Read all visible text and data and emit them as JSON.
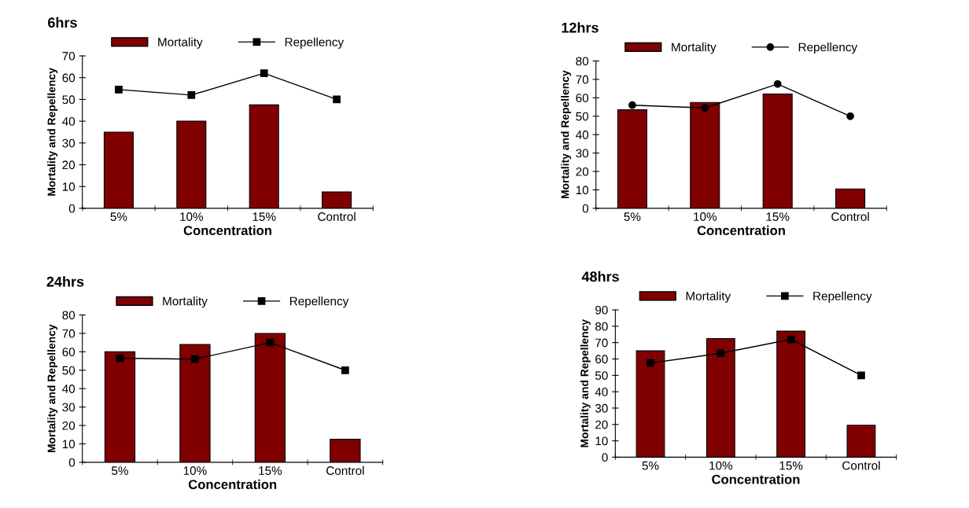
{
  "chart_data": [
    {
      "type": "bar",
      "title": "6hrs",
      "xlabel": "Concentration",
      "ylabel": "Mortality and Repellency",
      "categories": [
        "5%",
        "10%",
        "15%",
        "Control"
      ],
      "ylim": [
        0,
        70
      ],
      "yticks": [
        0,
        10,
        20,
        30,
        40,
        50,
        60,
        70
      ],
      "grid": false,
      "legend": "top",
      "series": [
        {
          "name": "Mortality",
          "color": "#800000",
          "values": [
            35,
            40,
            47.5,
            7.5
          ]
        },
        {
          "name": "Repellency",
          "type": "line",
          "color": "#000000",
          "marker": "square",
          "values": [
            54.5,
            52,
            62,
            50
          ]
        }
      ]
    },
    {
      "type": "bar",
      "title": "12hrs",
      "xlabel": "Concentration",
      "ylabel": "Mortality and Repellency",
      "categories": [
        "5%",
        "10%",
        "15%",
        "Control"
      ],
      "ylim": [
        0,
        80
      ],
      "yticks": [
        0,
        10,
        20,
        30,
        40,
        50,
        60,
        70,
        80
      ],
      "grid": false,
      "legend": "top",
      "series": [
        {
          "name": "Mortality",
          "color": "#800000",
          "values": [
            53.5,
            57.5,
            62,
            10.5
          ]
        },
        {
          "name": "Repellency",
          "type": "line",
          "color": "#000000",
          "marker": "circle",
          "values": [
            56,
            54.5,
            67.5,
            50
          ]
        }
      ]
    },
    {
      "type": "bar",
      "title": "24hrs",
      "xlabel": "Concentration",
      "ylabel": "Mortality and Repellency",
      "categories": [
        "5%",
        "10%",
        "15%",
        "Control"
      ],
      "ylim": [
        0,
        80
      ],
      "yticks": [
        0,
        10,
        20,
        30,
        40,
        50,
        60,
        70,
        80
      ],
      "grid": false,
      "legend": "top",
      "series": [
        {
          "name": "Mortality",
          "color": "#800000",
          "values": [
            60,
            64,
            70,
            12.5
          ]
        },
        {
          "name": "Repellency",
          "type": "line",
          "color": "#000000",
          "marker": "square",
          "values": [
            56.5,
            56,
            65,
            50
          ]
        }
      ]
    },
    {
      "type": "bar",
      "title": "48hrs",
      "xlabel": "Concentration",
      "ylabel": "Mortality and Repellency",
      "categories": [
        "5%",
        "10%",
        "15%",
        "Control"
      ],
      "ylim": [
        0,
        90
      ],
      "yticks": [
        0,
        10,
        20,
        30,
        40,
        50,
        60,
        70,
        80,
        90
      ],
      "grid": false,
      "legend": "top",
      "series": [
        {
          "name": "Mortality",
          "color": "#800000",
          "values": [
            65,
            72.5,
            77,
            19.5
          ]
        },
        {
          "name": "Repellency",
          "type": "line",
          "color": "#000000",
          "marker": "square",
          "values": [
            57.5,
            63.5,
            72,
            50
          ]
        }
      ]
    }
  ]
}
